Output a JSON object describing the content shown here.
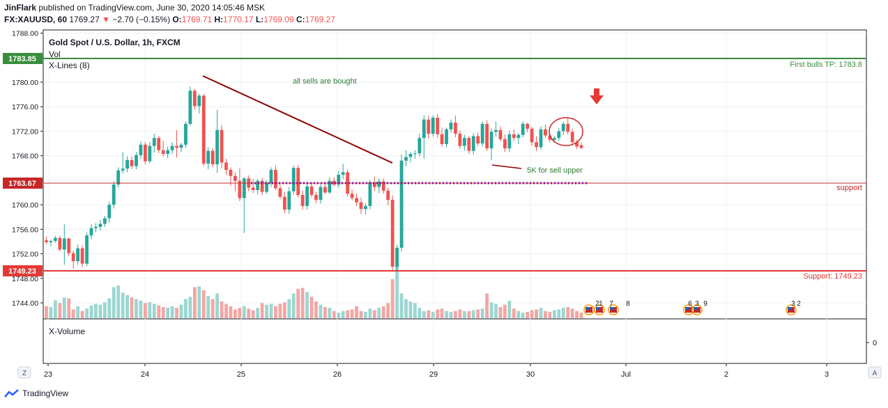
{
  "header": {
    "author": "JinFlark",
    "published_text": "published on TradingView.com, June 30, 2020 14:05:46 MSK",
    "symbol": "FX:XAUUSD, 60",
    "last": "1769.27",
    "change": "−2.70 (−0.15%)",
    "o_label": "O:",
    "o_value": "1769.71",
    "h_label": "H:",
    "h_value": "1770.17",
    "l_label": "L:",
    "l_value": "1769.09",
    "c_label": "C:",
    "c_value": "1769.27"
  },
  "legend": {
    "title": "Gold Spot / U.S. Dollar, 1h, FXCM",
    "vol": "Vol",
    "xlines": "X-Lines (8)",
    "xvolume": "X-Volume"
  },
  "annotations": {
    "bulls_tp": "First bulls TP: 1783.8",
    "support_top": "support",
    "support_bottom": "Support: 1749.23",
    "all_sells": "all sells are bought",
    "sell_upper": "5K for sell upper"
  },
  "price_labels": {
    "top": "1783.85",
    "mid": "1763.67",
    "bottom": "1749.23"
  },
  "event_labels": [
    "2",
    "1",
    "7",
    "8",
    "6",
    "3",
    "9",
    "3",
    "2"
  ],
  "bottom_axis": {
    "zero_label": "0",
    "z_button": "Z",
    "a_button": "A"
  },
  "footer": {
    "brand": "TradingView"
  },
  "colors": {
    "up": "#26a69a",
    "down": "#ef5350",
    "green_line": "#388e3c",
    "red_line": "#e53935",
    "trend": "#8b0000",
    "purple": "#7b1fa2"
  },
  "chart_data": {
    "type": "candlestick",
    "title": "Gold Spot / U.S. Dollar, 1h, FXCM",
    "y_ticks": [
      1788.0,
      1784.0,
      1780.0,
      1776.0,
      1772.0,
      1768.0,
      1764.0,
      1760.0,
      1756.0,
      1752.0,
      1748.0,
      1744.0
    ],
    "y_tick_labels": [
      "1788.00",
      "1784.00",
      "1780.00",
      "1776.00",
      "1772.00",
      "1768.00",
      "1764.00",
      "1760.00",
      "1756.00",
      "1752.00",
      "1748.00",
      "1744.00"
    ],
    "ylim": [
      1741.5,
      1788.5
    ],
    "x_tick_labels": [
      "23",
      "24",
      "25",
      "26",
      "29",
      "30",
      "Jul",
      "2",
      "3"
    ],
    "horizontal_lines": [
      {
        "price": 1783.85,
        "label": "First bulls TP: 1783.8"
      },
      {
        "price": 1763.67,
        "label": "support"
      },
      {
        "price": 1749.23,
        "label": "Support: 1749.23"
      }
    ],
    "ohlc": [
      [
        1754.2,
        1754.8,
        1753.6,
        1753.9
      ],
      [
        1753.9,
        1754.3,
        1753.2,
        1754.1
      ],
      [
        1754.1,
        1754.9,
        1753.8,
        1754.6
      ],
      [
        1754.6,
        1754.9,
        1752.4,
        1752.7
      ],
      [
        1752.7,
        1756.8,
        1750.2,
        1754.5
      ],
      [
        1754.5,
        1754.6,
        1751.6,
        1752.1
      ],
      [
        1752.1,
        1752.5,
        1749.6,
        1750.8
      ],
      [
        1750.8,
        1753.5,
        1750.2,
        1752.9
      ],
      [
        1752.9,
        1753.4,
        1749.8,
        1750.4
      ],
      [
        1750.4,
        1755.5,
        1750.0,
        1755.0
      ],
      [
        1755.0,
        1756.8,
        1754.4,
        1756.2
      ],
      [
        1756.2,
        1757.0,
        1755.5,
        1756.4
      ],
      [
        1756.4,
        1757.5,
        1755.8,
        1756.9
      ],
      [
        1756.9,
        1758.2,
        1756.4,
        1757.8
      ],
      [
        1757.8,
        1760.5,
        1757.1,
        1760.0
      ],
      [
        1760.0,
        1763.8,
        1759.4,
        1763.3
      ],
      [
        1763.3,
        1766.1,
        1762.8,
        1765.6
      ],
      [
        1765.6,
        1768.6,
        1765.1,
        1765.9
      ],
      [
        1765.9,
        1767.9,
        1765.3,
        1767.3
      ],
      [
        1767.3,
        1767.9,
        1765.8,
        1766.3
      ],
      [
        1766.3,
        1768.6,
        1765.8,
        1768.1
      ],
      [
        1768.1,
        1770.3,
        1767.4,
        1769.8
      ],
      [
        1769.8,
        1770.2,
        1766.6,
        1767.1
      ],
      [
        1767.1,
        1770.2,
        1766.8,
        1769.6
      ],
      [
        1769.6,
        1771.6,
        1768.5,
        1770.9
      ],
      [
        1770.9,
        1771.2,
        1768.4,
        1768.9
      ],
      [
        1768.9,
        1770.4,
        1767.9,
        1768.3
      ],
      [
        1768.3,
        1769.5,
        1767.6,
        1768.9
      ],
      [
        1768.9,
        1770.2,
        1768.3,
        1769.6
      ],
      [
        1769.6,
        1772.2,
        1767.7,
        1769.3
      ],
      [
        1769.3,
        1770.1,
        1768.6,
        1769.8
      ],
      [
        1769.8,
        1773.6,
        1769.3,
        1773.2
      ],
      [
        1773.2,
        1779.3,
        1772.9,
        1778.6
      ],
      [
        1778.6,
        1778.9,
        1775.5,
        1776.1
      ],
      [
        1776.1,
        1778.1,
        1774.9,
        1777.8
      ],
      [
        1777.8,
        1778.1,
        1766.3,
        1766.7
      ],
      [
        1766.7,
        1769.4,
        1765.8,
        1768.8
      ],
      [
        1768.8,
        1769.3,
        1766.1,
        1766.6
      ],
      [
        1766.6,
        1775.5,
        1765.2,
        1772.2
      ],
      [
        1772.2,
        1773.0,
        1766.0,
        1766.9
      ],
      [
        1766.9,
        1767.5,
        1764.9,
        1765.7
      ],
      [
        1765.7,
        1766.1,
        1763.1,
        1764.7
      ],
      [
        1764.7,
        1765.3,
        1762.2,
        1763.9
      ],
      [
        1763.9,
        1765.9,
        1760.6,
        1761.1
      ],
      [
        1761.1,
        1764.5,
        1755.4,
        1764.3
      ],
      [
        1764.3,
        1764.8,
        1762.2,
        1762.8
      ],
      [
        1762.8,
        1764.2,
        1761.9,
        1762.4
      ],
      [
        1762.4,
        1764.2,
        1761.7,
        1763.9
      ],
      [
        1763.9,
        1764.4,
        1761.6,
        1762.1
      ],
      [
        1762.1,
        1764.0,
        1761.8,
        1763.6
      ],
      [
        1763.6,
        1766.1,
        1762.9,
        1765.7
      ],
      [
        1765.7,
        1766.4,
        1762.4,
        1762.7
      ],
      [
        1762.7,
        1763.3,
        1760.9,
        1761.3
      ],
      [
        1761.3,
        1762.1,
        1758.6,
        1759.2
      ],
      [
        1759.2,
        1762.9,
        1758.5,
        1762.2
      ],
      [
        1762.2,
        1766.4,
        1761.6,
        1766.0
      ],
      [
        1766.0,
        1766.5,
        1761.2,
        1761.6
      ],
      [
        1761.6,
        1762.3,
        1759.2,
        1759.8
      ],
      [
        1759.8,
        1763.5,
        1759.2,
        1763.0
      ],
      [
        1763.0,
        1763.6,
        1761.2,
        1761.6
      ],
      [
        1761.6,
        1762.1,
        1760.3,
        1760.8
      ],
      [
        1760.8,
        1763.3,
        1760.2,
        1762.9
      ],
      [
        1762.9,
        1763.5,
        1761.7,
        1762.0
      ],
      [
        1762.0,
        1764.5,
        1761.8,
        1763.9
      ],
      [
        1763.9,
        1764.5,
        1763.0,
        1763.3
      ],
      [
        1763.3,
        1765.5,
        1762.8,
        1764.9
      ],
      [
        1764.9,
        1766.7,
        1764.2,
        1765.3
      ],
      [
        1765.3,
        1765.7,
        1761.4,
        1761.8
      ],
      [
        1761.8,
        1762.5,
        1760.7,
        1761.1
      ],
      [
        1761.1,
        1761.8,
        1759.8,
        1760.4
      ],
      [
        1760.4,
        1761.2,
        1758.5,
        1759.3
      ],
      [
        1759.3,
        1760.2,
        1758.4,
        1759.8
      ],
      [
        1759.8,
        1764.0,
        1759.3,
        1763.7
      ],
      [
        1763.7,
        1764.6,
        1762.2,
        1762.9
      ],
      [
        1762.9,
        1764.3,
        1761.9,
        1763.8
      ],
      [
        1763.8,
        1764.3,
        1761.8,
        1762.3
      ],
      [
        1762.3,
        1762.8,
        1759.9,
        1760.8
      ],
      [
        1760.8,
        1761.5,
        1749.1,
        1749.9
      ],
      [
        1749.9,
        1753.5,
        1749.1,
        1753.0
      ],
      [
        1753.0,
        1768.2,
        1752.4,
        1767.2
      ],
      [
        1767.2,
        1768.9,
        1766.3,
        1767.8
      ],
      [
        1767.8,
        1768.6,
        1766.9,
        1768.3
      ],
      [
        1768.3,
        1768.9,
        1767.5,
        1768.4
      ],
      [
        1768.4,
        1771.6,
        1767.9,
        1770.9
      ],
      [
        1770.9,
        1774.6,
        1767.5,
        1773.9
      ],
      [
        1773.9,
        1774.5,
        1770.8,
        1771.6
      ],
      [
        1771.6,
        1774.6,
        1771.1,
        1774.2
      ],
      [
        1774.2,
        1774.8,
        1770.9,
        1771.5
      ],
      [
        1771.5,
        1772.6,
        1769.5,
        1769.9
      ],
      [
        1769.9,
        1772.6,
        1769.4,
        1772.3
      ],
      [
        1772.3,
        1773.9,
        1771.8,
        1773.4
      ],
      [
        1773.4,
        1774.5,
        1771.0,
        1771.6
      ],
      [
        1771.6,
        1772.1,
        1769.2,
        1769.6
      ],
      [
        1769.6,
        1771.4,
        1768.8,
        1770.9
      ],
      [
        1770.9,
        1771.2,
        1768.3,
        1768.8
      ],
      [
        1768.8,
        1771.7,
        1768.2,
        1771.2
      ],
      [
        1771.2,
        1771.8,
        1769.6,
        1770.0
      ],
      [
        1770.0,
        1773.6,
        1769.5,
        1773.2
      ],
      [
        1773.2,
        1773.8,
        1768.8,
        1769.2
      ],
      [
        1769.2,
        1772.4,
        1767.3,
        1771.9
      ],
      [
        1771.9,
        1773.6,
        1771.1,
        1772.2
      ],
      [
        1772.2,
        1772.8,
        1770.3,
        1770.7
      ],
      [
        1770.7,
        1771.5,
        1768.6,
        1769.2
      ],
      [
        1769.2,
        1772.1,
        1768.6,
        1771.5
      ],
      [
        1771.5,
        1772.3,
        1770.4,
        1770.9
      ],
      [
        1770.9,
        1771.7,
        1769.9,
        1771.4
      ],
      [
        1771.4,
        1773.6,
        1771.0,
        1773.2
      ],
      [
        1773.2,
        1773.4,
        1771.9,
        1772.4
      ],
      [
        1772.4,
        1772.7,
        1769.6,
        1770.2
      ],
      [
        1770.2,
        1771.2,
        1768.8,
        1769.4
      ],
      [
        1769.4,
        1772.8,
        1769.0,
        1772.3
      ],
      [
        1772.3,
        1773.1,
        1770.9,
        1771.3
      ],
      [
        1771.3,
        1771.7,
        1770.2,
        1770.6
      ],
      [
        1770.6,
        1771.2,
        1770.1,
        1770.9
      ],
      [
        1770.9,
        1772.5,
        1770.4,
        1772.0
      ],
      [
        1772.0,
        1773.6,
        1771.4,
        1773.2
      ],
      [
        1773.2,
        1774.1,
        1771.5,
        1771.9
      ],
      [
        1771.9,
        1772.4,
        1769.7,
        1770.2
      ],
      [
        1770.2,
        1770.6,
        1769.1,
        1769.5
      ],
      [
        1769.71,
        1770.17,
        1769.09,
        1769.27
      ]
    ],
    "volume": [
      30,
      28,
      45,
      38,
      52,
      50,
      22,
      30,
      18,
      24,
      32,
      36,
      34,
      40,
      50,
      78,
      82,
      64,
      58,
      52,
      48,
      44,
      38,
      40,
      36,
      32,
      28,
      26,
      30,
      26,
      34,
      48,
      54,
      78,
      80,
      70,
      56,
      48,
      62,
      42,
      36,
      30,
      22,
      26,
      30,
      24,
      20,
      26,
      38,
      34,
      36,
      30,
      36,
      40,
      48,
      62,
      74,
      76,
      66,
      54,
      42,
      34,
      28,
      26,
      18,
      14,
      18,
      20,
      22,
      30,
      18,
      16,
      24,
      20,
      26,
      30,
      38,
      98,
      140,
      62,
      48,
      42,
      38,
      26,
      18,
      20,
      16,
      22,
      24,
      18,
      16,
      18,
      22,
      18,
      18,
      20,
      22,
      24,
      62,
      40,
      36,
      28,
      34,
      44,
      24,
      18,
      14,
      16,
      20,
      22,
      26,
      18,
      16,
      20,
      22,
      26,
      28,
      24,
      18,
      14
    ]
  }
}
